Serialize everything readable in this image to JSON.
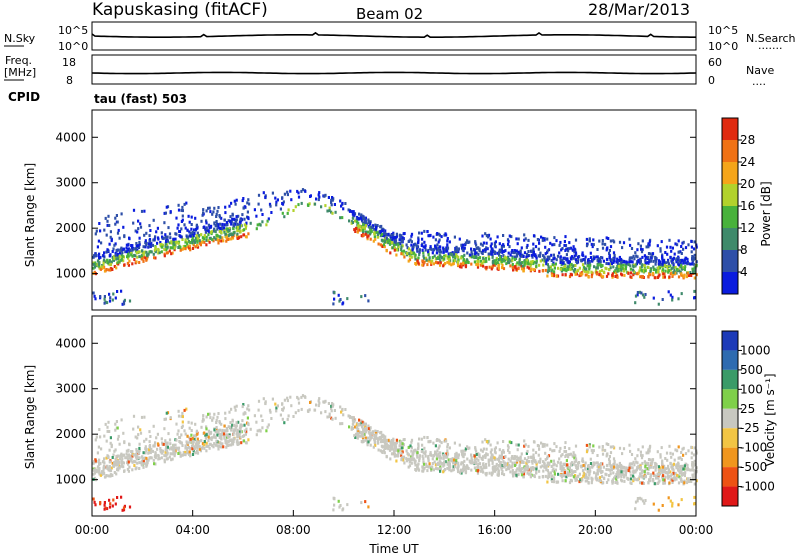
{
  "header": {
    "station": "Kapuskasing (fitACF)",
    "beam": "Beam 02",
    "date": "28/Mar/2013"
  },
  "noise_panel": {
    "left_label": "N.Sky",
    "right_label": "N.Search",
    "right_legend_dots": "·······",
    "y_ticks": [
      "10^5",
      "10^0"
    ]
  },
  "freq_panel": {
    "left_label_1": "Freq.",
    "left_label_2": "[MHz]",
    "left_ticks": [
      "18",
      "8"
    ],
    "right_label": "Nave",
    "right_legend_dots": "····",
    "right_ticks": [
      "60",
      "0"
    ]
  },
  "cpid_label": "CPID",
  "tau_label": "tau (fast) 503",
  "chart_data": [
    {
      "type": "heatmap",
      "name": "power",
      "ylabel": "Slant Range [km]",
      "ylim": [
        200,
        4600
      ],
      "yticks": [
        "1000",
        "2000",
        "3000",
        "4000"
      ],
      "xlim": [
        0,
        24
      ],
      "colorbar_label": "Power [dB]",
      "colorbar_ticks": [
        "4",
        "8",
        "12",
        "16",
        "20",
        "24",
        "28"
      ],
      "colorbar_colors": [
        "#0a1cde",
        "#2e4fa8",
        "#3f8a6b",
        "#48b23b",
        "#b2d22c",
        "#f5a51a",
        "#f07215",
        "#e02a10"
      ]
    },
    {
      "type": "heatmap",
      "name": "velocity",
      "ylabel": "Slant Range [km]",
      "ylim": [
        200,
        4600
      ],
      "yticks": [
        "1000",
        "2000",
        "3000",
        "4000"
      ],
      "xlim": [
        0,
        24
      ],
      "xticks": [
        "00:00",
        "04:00",
        "08:00",
        "12:00",
        "16:00",
        "20:00",
        "00:00"
      ],
      "xlabel": "Time UT",
      "colorbar_label": "Velocity [m s⁻¹]",
      "colorbar_ticks": [
        "1000",
        "500",
        "100",
        "25",
        "-25",
        "-100",
        "-500",
        "-1000"
      ],
      "colorbar_colors": [
        "#1c3ab8",
        "#2e6bb0",
        "#3a9b68",
        "#7fd04a",
        "#c8c8c0",
        "#f2c544",
        "#f0961e",
        "#ee5214",
        "#e01818"
      ]
    }
  ]
}
